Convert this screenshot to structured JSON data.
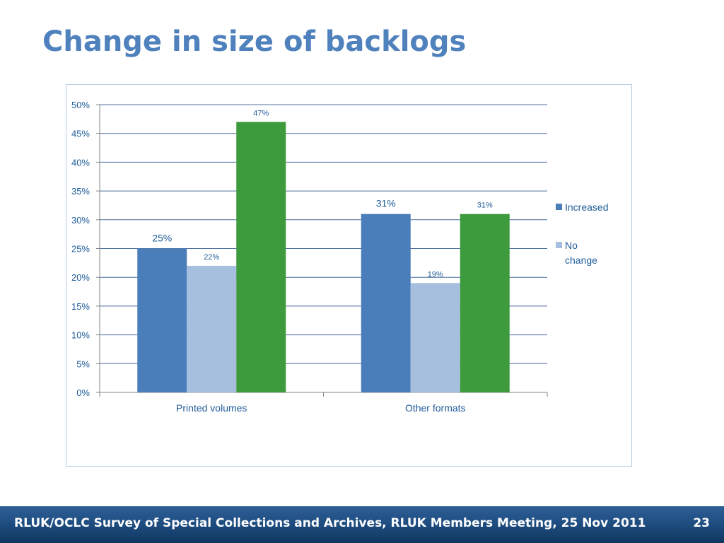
{
  "slide": {
    "title": "Change in size of backlogs",
    "footer_text": "RLUK/OCLC Survey of Special Collections and Archives, RLUK Members Meeting, 25 Nov 2011",
    "page_number": "23"
  },
  "chart_data": {
    "type": "bar",
    "title": "",
    "xlabel": "",
    "ylabel": "",
    "categories": [
      "Printed volumes",
      "Other formats"
    ],
    "series": [
      {
        "name": "Increased",
        "values": [
          25,
          31
        ],
        "labels": [
          "25%",
          "31%"
        ],
        "color": "#4A7EBB",
        "legend": true
      },
      {
        "name": "No change",
        "values": [
          22,
          19
        ],
        "labels": [
          "22%",
          "19%"
        ],
        "color": "#A7BFDE",
        "legend": true
      },
      {
        "name": "",
        "values": [
          47,
          31
        ],
        "labels": [
          "47%",
          "31%"
        ],
        "color": "#3D9A3D",
        "legend": false
      }
    ],
    "ylim": [
      0,
      50
    ],
    "y_ticks": [
      0,
      5,
      10,
      15,
      20,
      25,
      30,
      35,
      40,
      45,
      50
    ],
    "y_tick_labels": [
      "0%",
      "5%",
      "10%",
      "15%",
      "20%",
      "25%",
      "30%",
      "35%",
      "40%",
      "45%",
      "50%"
    ],
    "grid": true,
    "legend_position": "right",
    "legend_labels": [
      "Increased",
      "No",
      "change"
    ]
  }
}
